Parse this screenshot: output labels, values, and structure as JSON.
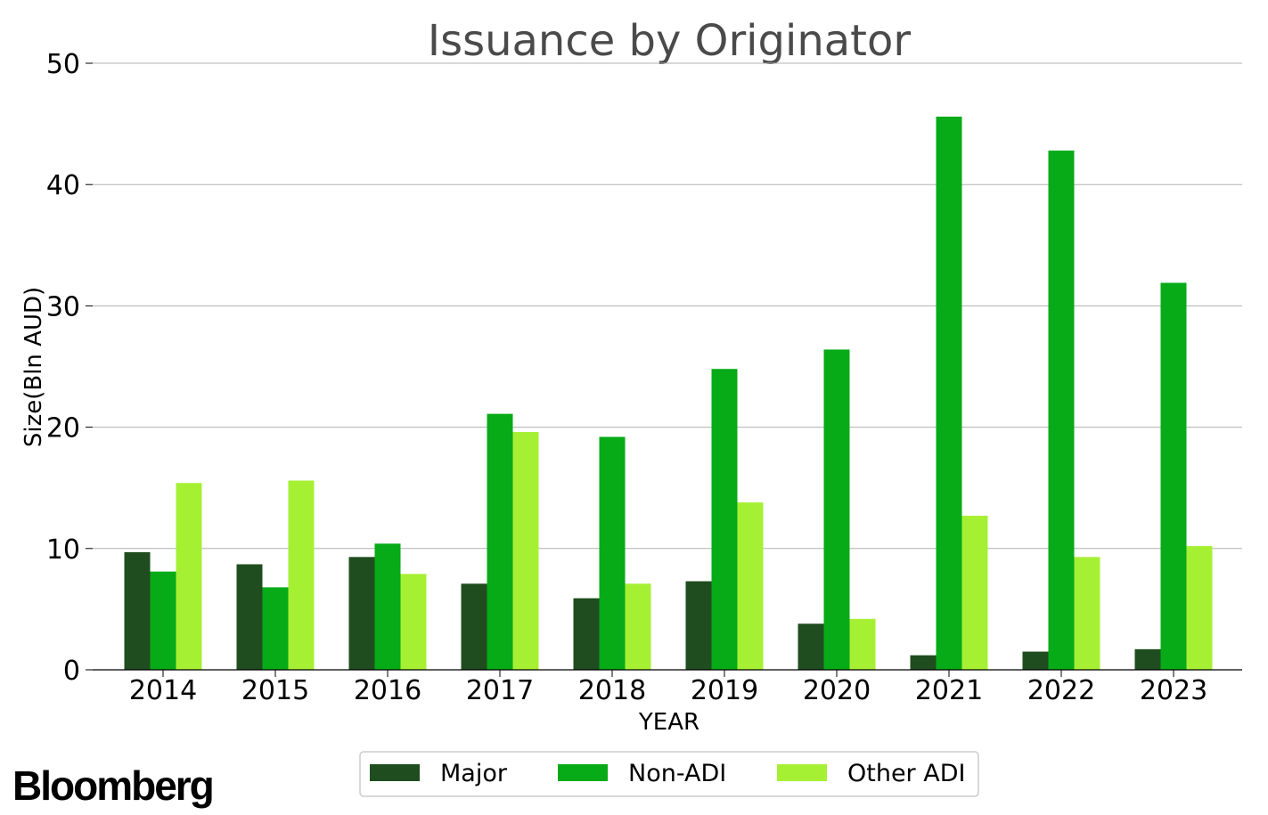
{
  "brand": {
    "text": "Bloomberg"
  },
  "chart_data": {
    "type": "bar",
    "title": "Issuance by Originator",
    "xlabel": "YEAR",
    "ylabel": "Size(Bln AUD)",
    "categories": [
      "2014",
      "2015",
      "2016",
      "2017",
      "2018",
      "2019",
      "2020",
      "2021",
      "2022",
      "2023"
    ],
    "ylim": [
      0,
      50
    ],
    "yticks": [
      0,
      10,
      20,
      30,
      40,
      50
    ],
    "grid": true,
    "legend_position": "bottom-center",
    "series": [
      {
        "name": "Major",
        "color": "#1f4d1f",
        "values": [
          9.7,
          8.7,
          9.3,
          7.1,
          5.9,
          7.3,
          3.8,
          1.2,
          1.5,
          1.7
        ]
      },
      {
        "name": "Non-ADI",
        "color": "#07aa17",
        "values": [
          8.1,
          6.8,
          10.4,
          21.1,
          19.2,
          24.8,
          26.4,
          45.6,
          42.8,
          31.9
        ]
      },
      {
        "name": "Other ADI",
        "color": "#a6f034",
        "values": [
          15.4,
          15.6,
          7.9,
          19.6,
          7.1,
          13.8,
          4.2,
          12.7,
          9.3,
          10.2
        ]
      }
    ]
  }
}
